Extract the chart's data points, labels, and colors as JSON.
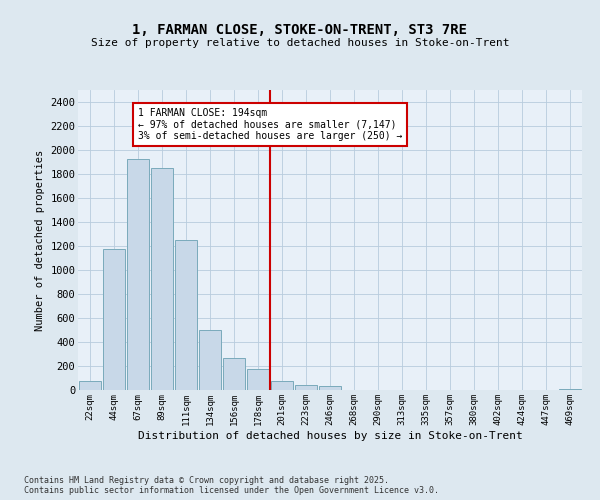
{
  "title_line1": "1, FARMAN CLOSE, STOKE-ON-TRENT, ST3 7RE",
  "title_line2": "Size of property relative to detached houses in Stoke-on-Trent",
  "xlabel": "Distribution of detached houses by size in Stoke-on-Trent",
  "ylabel": "Number of detached properties",
  "categories": [
    "22sqm",
    "44sqm",
    "67sqm",
    "89sqm",
    "111sqm",
    "134sqm",
    "156sqm",
    "178sqm",
    "201sqm",
    "223sqm",
    "246sqm",
    "268sqm",
    "290sqm",
    "313sqm",
    "335sqm",
    "357sqm",
    "380sqm",
    "402sqm",
    "424sqm",
    "447sqm",
    "469sqm"
  ],
  "values": [
    75,
    1175,
    1925,
    1850,
    1250,
    500,
    270,
    175,
    75,
    40,
    30,
    0,
    0,
    0,
    0,
    0,
    0,
    0,
    0,
    0,
    10
  ],
  "bar_color": "#c8d8e8",
  "bar_edge_color": "#7aaabb",
  "vline_index": 8,
  "vline_color": "#cc0000",
  "annotation_text": "1 FARMAN CLOSE: 194sqm\n← 97% of detached houses are smaller (7,147)\n3% of semi-detached houses are larger (250) →",
  "annotation_box_color": "#cc0000",
  "annotation_text_color": "#000000",
  "ylim": [
    0,
    2500
  ],
  "yticks": [
    0,
    200,
    400,
    600,
    800,
    1000,
    1200,
    1400,
    1600,
    1800,
    2000,
    2200,
    2400
  ],
  "grid_color": "#b8ccdd",
  "background_color": "#dde8f0",
  "plot_bg_color": "#e8f0f8",
  "footer_line1": "Contains HM Land Registry data © Crown copyright and database right 2025.",
  "footer_line2": "Contains public sector information licensed under the Open Government Licence v3.0."
}
